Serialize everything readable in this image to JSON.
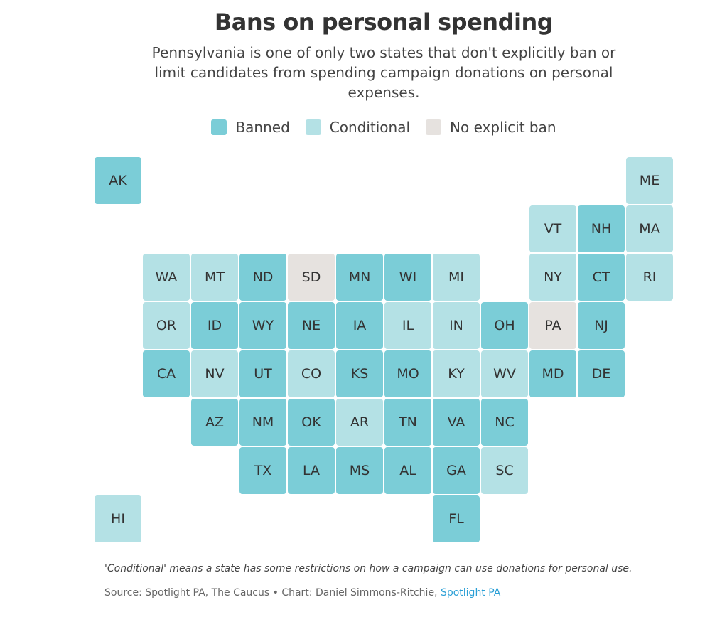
{
  "title": "Bans on personal spending",
  "subtitle": "Pennsylvania is one of only two states that don't explicitly ban or limit candidates from spending campaign donations on personal expenses.",
  "legend": [
    {
      "key": "banned",
      "label": "Banned",
      "color": "#7bcdd7"
    },
    {
      "key": "conditional",
      "label": "Conditional",
      "color": "#b4e1e5"
    },
    {
      "key": "none",
      "label": "No explicit ban",
      "color": "#e6e2df"
    }
  ],
  "states": [
    {
      "abbr": "AK",
      "status": "banned",
      "col": 0,
      "row": 0
    },
    {
      "abbr": "ME",
      "status": "conditional",
      "col": 11,
      "row": 0
    },
    {
      "abbr": "VT",
      "status": "conditional",
      "col": 9,
      "row": 1
    },
    {
      "abbr": "NH",
      "status": "banned",
      "col": 10,
      "row": 1
    },
    {
      "abbr": "MA",
      "status": "conditional",
      "col": 11,
      "row": 1
    },
    {
      "abbr": "WA",
      "status": "conditional",
      "col": 1,
      "row": 2
    },
    {
      "abbr": "MT",
      "status": "conditional",
      "col": 2,
      "row": 2
    },
    {
      "abbr": "ND",
      "status": "banned",
      "col": 3,
      "row": 2
    },
    {
      "abbr": "SD",
      "status": "none",
      "col": 4,
      "row": 2
    },
    {
      "abbr": "MN",
      "status": "banned",
      "col": 5,
      "row": 2
    },
    {
      "abbr": "WI",
      "status": "banned",
      "col": 6,
      "row": 2
    },
    {
      "abbr": "MI",
      "status": "conditional",
      "col": 7,
      "row": 2
    },
    {
      "abbr": "NY",
      "status": "conditional",
      "col": 9,
      "row": 2
    },
    {
      "abbr": "CT",
      "status": "banned",
      "col": 10,
      "row": 2
    },
    {
      "abbr": "RI",
      "status": "conditional",
      "col": 11,
      "row": 2
    },
    {
      "abbr": "OR",
      "status": "conditional",
      "col": 1,
      "row": 3
    },
    {
      "abbr": "ID",
      "status": "banned",
      "col": 2,
      "row": 3
    },
    {
      "abbr": "WY",
      "status": "banned",
      "col": 3,
      "row": 3
    },
    {
      "abbr": "NE",
      "status": "banned",
      "col": 4,
      "row": 3
    },
    {
      "abbr": "IA",
      "status": "banned",
      "col": 5,
      "row": 3
    },
    {
      "abbr": "IL",
      "status": "conditional",
      "col": 6,
      "row": 3
    },
    {
      "abbr": "IN",
      "status": "conditional",
      "col": 7,
      "row": 3
    },
    {
      "abbr": "OH",
      "status": "banned",
      "col": 8,
      "row": 3
    },
    {
      "abbr": "PA",
      "status": "none",
      "col": 9,
      "row": 3
    },
    {
      "abbr": "NJ",
      "status": "banned",
      "col": 10,
      "row": 3
    },
    {
      "abbr": "CA",
      "status": "banned",
      "col": 1,
      "row": 4
    },
    {
      "abbr": "NV",
      "status": "conditional",
      "col": 2,
      "row": 4
    },
    {
      "abbr": "UT",
      "status": "banned",
      "col": 3,
      "row": 4
    },
    {
      "abbr": "CO",
      "status": "conditional",
      "col": 4,
      "row": 4
    },
    {
      "abbr": "KS",
      "status": "banned",
      "col": 5,
      "row": 4
    },
    {
      "abbr": "MO",
      "status": "banned",
      "col": 6,
      "row": 4
    },
    {
      "abbr": "KY",
      "status": "conditional",
      "col": 7,
      "row": 4
    },
    {
      "abbr": "WV",
      "status": "conditional",
      "col": 8,
      "row": 4
    },
    {
      "abbr": "MD",
      "status": "banned",
      "col": 9,
      "row": 4
    },
    {
      "abbr": "DE",
      "status": "banned",
      "col": 10,
      "row": 4
    },
    {
      "abbr": "AZ",
      "status": "banned",
      "col": 2,
      "row": 5
    },
    {
      "abbr": "NM",
      "status": "banned",
      "col": 3,
      "row": 5
    },
    {
      "abbr": "OK",
      "status": "banned",
      "col": 4,
      "row": 5
    },
    {
      "abbr": "AR",
      "status": "conditional",
      "col": 5,
      "row": 5
    },
    {
      "abbr": "TN",
      "status": "banned",
      "col": 6,
      "row": 5
    },
    {
      "abbr": "VA",
      "status": "banned",
      "col": 7,
      "row": 5
    },
    {
      "abbr": "NC",
      "status": "banned",
      "col": 8,
      "row": 5
    },
    {
      "abbr": "TX",
      "status": "banned",
      "col": 3,
      "row": 6
    },
    {
      "abbr": "LA",
      "status": "banned",
      "col": 4,
      "row": 6
    },
    {
      "abbr": "MS",
      "status": "banned",
      "col": 5,
      "row": 6
    },
    {
      "abbr": "AL",
      "status": "banned",
      "col": 6,
      "row": 6
    },
    {
      "abbr": "GA",
      "status": "banned",
      "col": 7,
      "row": 6
    },
    {
      "abbr": "SC",
      "status": "conditional",
      "col": 8,
      "row": 6
    },
    {
      "abbr": "HI",
      "status": "conditional",
      "col": 0,
      "row": 7
    },
    {
      "abbr": "FL",
      "status": "banned",
      "col": 7,
      "row": 7
    }
  ],
  "note": "'Conditional' means a state has some restrictions on how a campaign can use donations for personal use.",
  "source": {
    "text": "Source: Spotlight PA, The Caucus • Chart: Daniel Simmons-Ritchie, ",
    "link_text": "Spotlight PA"
  }
}
